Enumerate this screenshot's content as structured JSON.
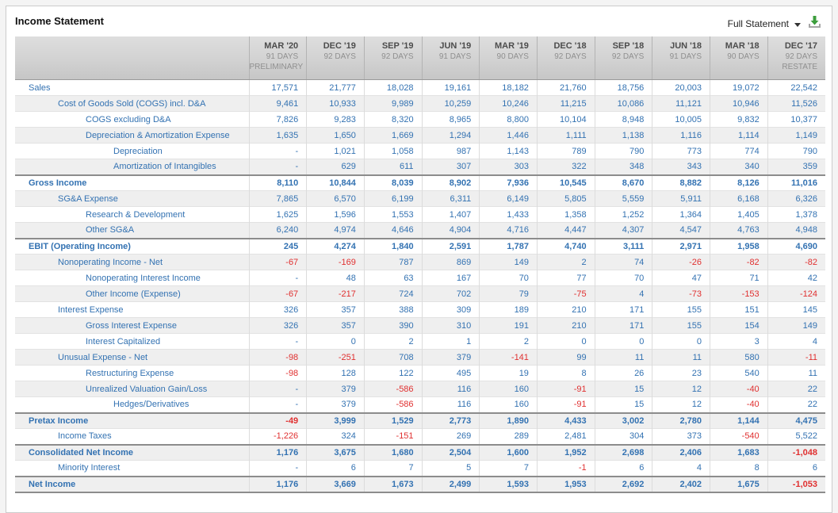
{
  "page": {
    "title": "Income Statement"
  },
  "toolbar": {
    "view_selector": "Full Statement",
    "caret_icon": "dropdown-caret",
    "download_icon": "download-arrow-into-tray"
  },
  "colors": {
    "link_blue": "#3372b2",
    "negative_red": "#e03030",
    "header_gradient_top": "#dedede",
    "header_gradient_bottom": "#c6c6c6",
    "download_green": "#3d9e3d"
  },
  "table": {
    "columns": [
      {
        "period": "MAR '20",
        "days": "91 DAYS",
        "note": "PRELIMINARY"
      },
      {
        "period": "DEC '19",
        "days": "92 DAYS",
        "note": ""
      },
      {
        "period": "SEP '19",
        "days": "92 DAYS",
        "note": ""
      },
      {
        "period": "JUN '19",
        "days": "91 DAYS",
        "note": ""
      },
      {
        "period": "MAR '19",
        "days": "90 DAYS",
        "note": ""
      },
      {
        "period": "DEC '18",
        "days": "92 DAYS",
        "note": ""
      },
      {
        "period": "SEP '18",
        "days": "92 DAYS",
        "note": ""
      },
      {
        "period": "JUN '18",
        "days": "91 DAYS",
        "note": ""
      },
      {
        "period": "MAR '18",
        "days": "90 DAYS",
        "note": ""
      },
      {
        "period": "DEC '17",
        "days": "92 DAYS",
        "note": "RESTATE"
      }
    ],
    "rows": [
      {
        "label": "Sales",
        "level": 0,
        "section": false,
        "values": [
          "17,571",
          "21,777",
          "18,028",
          "19,161",
          "18,182",
          "21,760",
          "18,756",
          "20,003",
          "19,072",
          "22,542"
        ]
      },
      {
        "label": "Cost of Goods Sold (COGS) incl. D&A",
        "level": 1,
        "section": false,
        "values": [
          "9,461",
          "10,933",
          "9,989",
          "10,259",
          "10,246",
          "11,215",
          "10,086",
          "11,121",
          "10,946",
          "11,526"
        ]
      },
      {
        "label": "COGS excluding D&A",
        "level": 2,
        "section": false,
        "values": [
          "7,826",
          "9,283",
          "8,320",
          "8,965",
          "8,800",
          "10,104",
          "8,948",
          "10,005",
          "9,832",
          "10,377"
        ]
      },
      {
        "label": "Depreciation & Amortization Expense",
        "level": 2,
        "section": false,
        "values": [
          "1,635",
          "1,650",
          "1,669",
          "1,294",
          "1,446",
          "1,111",
          "1,138",
          "1,116",
          "1,114",
          "1,149"
        ]
      },
      {
        "label": "Depreciation",
        "level": 3,
        "section": false,
        "values": [
          "-",
          "1,021",
          "1,058",
          "987",
          "1,143",
          "789",
          "790",
          "773",
          "774",
          "790"
        ]
      },
      {
        "label": "Amortization of Intangibles",
        "level": 3,
        "section": false,
        "values": [
          "-",
          "629",
          "611",
          "307",
          "303",
          "322",
          "348",
          "343",
          "340",
          "359"
        ]
      },
      {
        "label": "Gross Income",
        "level": 0,
        "section": true,
        "values": [
          "8,110",
          "10,844",
          "8,039",
          "8,902",
          "7,936",
          "10,545",
          "8,670",
          "8,882",
          "8,126",
          "11,016"
        ]
      },
      {
        "label": "SG&A Expense",
        "level": 1,
        "section": false,
        "values": [
          "7,865",
          "6,570",
          "6,199",
          "6,311",
          "6,149",
          "5,805",
          "5,559",
          "5,911",
          "6,168",
          "6,326"
        ]
      },
      {
        "label": "Research & Development",
        "level": 2,
        "section": false,
        "values": [
          "1,625",
          "1,596",
          "1,553",
          "1,407",
          "1,433",
          "1,358",
          "1,252",
          "1,364",
          "1,405",
          "1,378"
        ]
      },
      {
        "label": "Other SG&A",
        "level": 2,
        "section": false,
        "values": [
          "6,240",
          "4,974",
          "4,646",
          "4,904",
          "4,716",
          "4,447",
          "4,307",
          "4,547",
          "4,763",
          "4,948"
        ]
      },
      {
        "label": "EBIT (Operating Income)",
        "level": 0,
        "section": true,
        "values": [
          "245",
          "4,274",
          "1,840",
          "2,591",
          "1,787",
          "4,740",
          "3,111",
          "2,971",
          "1,958",
          "4,690"
        ]
      },
      {
        "label": "Nonoperating Income - Net",
        "level": 1,
        "section": false,
        "values": [
          "-67",
          "-169",
          "787",
          "869",
          "149",
          "2",
          "74",
          "-26",
          "-82",
          "-82"
        ]
      },
      {
        "label": "Nonoperating Interest Income",
        "level": 2,
        "section": false,
        "values": [
          "-",
          "48",
          "63",
          "167",
          "70",
          "77",
          "70",
          "47",
          "71",
          "42"
        ]
      },
      {
        "label": "Other Income (Expense)",
        "level": 2,
        "section": false,
        "values": [
          "-67",
          "-217",
          "724",
          "702",
          "79",
          "-75",
          "4",
          "-73",
          "-153",
          "-124"
        ]
      },
      {
        "label": "Interest Expense",
        "level": 1,
        "section": false,
        "values": [
          "326",
          "357",
          "388",
          "309",
          "189",
          "210",
          "171",
          "155",
          "151",
          "145"
        ]
      },
      {
        "label": "Gross Interest Expense",
        "level": 2,
        "section": false,
        "values": [
          "326",
          "357",
          "390",
          "310",
          "191",
          "210",
          "171",
          "155",
          "154",
          "149"
        ]
      },
      {
        "label": "Interest Capitalized",
        "level": 2,
        "section": false,
        "values": [
          "-",
          "0",
          "2",
          "1",
          "2",
          "0",
          "0",
          "0",
          "3",
          "4"
        ]
      },
      {
        "label": "Unusual Expense - Net",
        "level": 1,
        "section": false,
        "values": [
          "-98",
          "-251",
          "708",
          "379",
          "-141",
          "99",
          "11",
          "11",
          "580",
          "-11"
        ]
      },
      {
        "label": "Restructuring Expense",
        "level": 2,
        "section": false,
        "values": [
          "-98",
          "128",
          "122",
          "495",
          "19",
          "8",
          "26",
          "23",
          "540",
          "11"
        ]
      },
      {
        "label": "Unrealized Valuation Gain/Loss",
        "level": 2,
        "section": false,
        "values": [
          "-",
          "379",
          "-586",
          "116",
          "160",
          "-91",
          "15",
          "12",
          "-40",
          "22"
        ]
      },
      {
        "label": "Hedges/Derivatives",
        "level": 3,
        "section": false,
        "values": [
          "-",
          "379",
          "-586",
          "116",
          "160",
          "-91",
          "15",
          "12",
          "-40",
          "22"
        ]
      },
      {
        "label": "Pretax Income",
        "level": 0,
        "section": true,
        "values": [
          "-49",
          "3,999",
          "1,529",
          "2,773",
          "1,890",
          "4,433",
          "3,002",
          "2,780",
          "1,144",
          "4,475"
        ]
      },
      {
        "label": "Income Taxes",
        "level": 1,
        "section": false,
        "values": [
          "-1,226",
          "324",
          "-151",
          "269",
          "289",
          "2,481",
          "304",
          "373",
          "-540",
          "5,522"
        ]
      },
      {
        "label": "Consolidated Net Income",
        "level": 0,
        "section": true,
        "values": [
          "1,176",
          "3,675",
          "1,680",
          "2,504",
          "1,600",
          "1,952",
          "2,698",
          "2,406",
          "1,683",
          "-1,048"
        ]
      },
      {
        "label": "Minority Interest",
        "level": 1,
        "section": false,
        "values": [
          "-",
          "6",
          "7",
          "5",
          "7",
          "-1",
          "6",
          "4",
          "8",
          "6"
        ]
      },
      {
        "label": "Net Income",
        "level": 0,
        "section": true,
        "values": [
          "1,176",
          "3,669",
          "1,673",
          "2,499",
          "1,593",
          "1,953",
          "2,692",
          "2,402",
          "1,675",
          "-1,053"
        ]
      }
    ]
  }
}
